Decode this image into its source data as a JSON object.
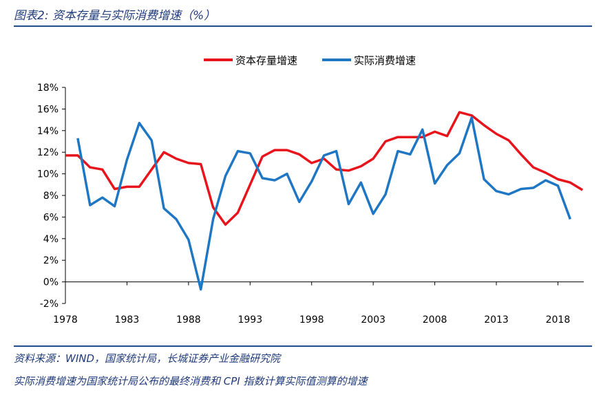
{
  "figure": {
    "title": "图表2:  资本存量与实际消费增速（%）",
    "source": "资料来源：WIND，国家统计局，长城证券产业金融研究院",
    "note": "实际消费增速为国家统计局公布的最终消费和 CPI 指数计算实际值测算的增速"
  },
  "colors": {
    "capital": "#e8141c",
    "consumption": "#1f77c4",
    "rule": "#1f4e8c",
    "title": "#1f3a7a"
  },
  "chart_data": {
    "type": "line",
    "x_axis": {
      "min": 1978,
      "max": 2019,
      "tick_labels": [
        "1978",
        "1983",
        "1988",
        "1993",
        "1998",
        "2003",
        "2008",
        "2013",
        "2018"
      ]
    },
    "y_axis": {
      "min": -2,
      "max": 18,
      "tick_labels": [
        "-2%",
        "0%",
        "2%",
        "4%",
        "6%",
        "8%",
        "10%",
        "12%",
        "14%",
        "16%",
        "18%"
      ]
    },
    "legend_position": "top-center",
    "series": [
      {
        "name": "资本存量增速",
        "color": "#e8141c",
        "points": [
          [
            1978,
            11.7
          ],
          [
            1979,
            11.7
          ],
          [
            1980,
            10.6
          ],
          [
            1981,
            10.4
          ],
          [
            1982,
            8.6
          ],
          [
            1983,
            8.8
          ],
          [
            1984,
            8.8
          ],
          [
            1985,
            10.4
          ],
          [
            1986,
            12.0
          ],
          [
            1987,
            11.4
          ],
          [
            1988,
            11.0
          ],
          [
            1989,
            10.9
          ],
          [
            1990,
            6.9
          ],
          [
            1991,
            5.3
          ],
          [
            1992,
            6.4
          ],
          [
            1993,
            9.0
          ],
          [
            1994,
            11.6
          ],
          [
            1995,
            12.2
          ],
          [
            1996,
            12.2
          ],
          [
            1997,
            11.8
          ],
          [
            1998,
            11.0
          ],
          [
            1999,
            11.4
          ],
          [
            2000,
            10.4
          ],
          [
            2001,
            10.3
          ],
          [
            2002,
            10.7
          ],
          [
            2003,
            11.4
          ],
          [
            2004,
            13.0
          ],
          [
            2005,
            13.4
          ],
          [
            2006,
            13.4
          ],
          [
            2007,
            13.4
          ],
          [
            2008,
            13.9
          ],
          [
            2009,
            13.5
          ],
          [
            2010,
            15.7
          ],
          [
            2011,
            15.4
          ],
          [
            2012,
            14.5
          ],
          [
            2013,
            13.7
          ],
          [
            2014,
            13.1
          ],
          [
            2015,
            11.8
          ],
          [
            2016,
            10.6
          ],
          [
            2017,
            10.1
          ],
          [
            2018,
            9.5
          ],
          [
            2019,
            9.2
          ],
          [
            2020,
            8.5
          ]
        ]
      },
      {
        "name": "实际消费增速",
        "color": "#1f77c4",
        "points": [
          [
            1979,
            13.3
          ],
          [
            1980,
            7.1
          ],
          [
            1981,
            7.8
          ],
          [
            1982,
            7.0
          ],
          [
            1983,
            11.3
          ],
          [
            1984,
            14.7
          ],
          [
            1985,
            13.1
          ],
          [
            1986,
            6.8
          ],
          [
            1987,
            5.8
          ],
          [
            1988,
            3.9
          ],
          [
            1989,
            -0.7
          ],
          [
            1990,
            5.8
          ],
          [
            1991,
            9.8
          ],
          [
            1992,
            12.1
          ],
          [
            1993,
            11.9
          ],
          [
            1994,
            9.6
          ],
          [
            1995,
            9.4
          ],
          [
            1996,
            10.0
          ],
          [
            1997,
            7.4
          ],
          [
            1998,
            9.3
          ],
          [
            1999,
            11.7
          ],
          [
            2000,
            12.1
          ],
          [
            2001,
            7.2
          ],
          [
            2002,
            9.2
          ],
          [
            2003,
            6.3
          ],
          [
            2004,
            8.1
          ],
          [
            2005,
            12.1
          ],
          [
            2006,
            11.8
          ],
          [
            2007,
            14.1
          ],
          [
            2008,
            9.1
          ],
          [
            2009,
            10.8
          ],
          [
            2010,
            11.9
          ],
          [
            2011,
            15.2
          ],
          [
            2012,
            9.5
          ],
          [
            2013,
            8.4
          ],
          [
            2014,
            8.1
          ],
          [
            2015,
            8.6
          ],
          [
            2016,
            8.7
          ],
          [
            2017,
            9.4
          ],
          [
            2018,
            8.9
          ],
          [
            2019,
            5.8
          ]
        ]
      }
    ]
  }
}
